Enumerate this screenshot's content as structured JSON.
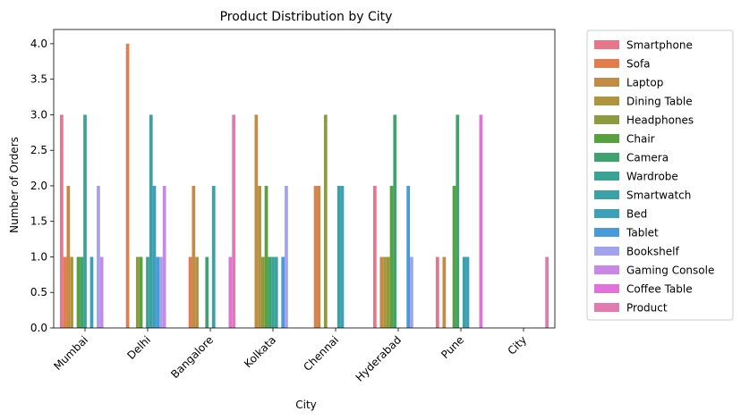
{
  "chart_data": {
    "type": "bar",
    "title": "Product Distribution by City",
    "xlabel": "City",
    "ylabel": "Number of Orders",
    "ylim": [
      0,
      4.2
    ],
    "yticks": [
      "0.0",
      "0.5",
      "1.0",
      "1.5",
      "2.0",
      "2.5",
      "3.0",
      "3.5",
      "4.0"
    ],
    "grid": false,
    "legend_position": "outside-right",
    "categories": [
      "Mumbai",
      "Delhi",
      "Bangalore",
      "Kolkata",
      "Chennai",
      "Hyderabad",
      "Pune",
      "City"
    ],
    "series": [
      {
        "name": "Smartphone",
        "color": "#e8768a",
        "values": [
          3,
          null,
          null,
          null,
          null,
          2,
          1,
          null
        ]
      },
      {
        "name": "Sofa",
        "color": "#e07f4d",
        "values": [
          1,
          4,
          1,
          null,
          2,
          null,
          null,
          null
        ]
      },
      {
        "name": "Laptop",
        "color": "#c28c46",
        "values": [
          2,
          null,
          2,
          3,
          2,
          1,
          1,
          null
        ]
      },
      {
        "name": "Dining Table",
        "color": "#ae9340",
        "values": [
          1,
          null,
          1,
          2,
          null,
          1,
          null,
          null
        ]
      },
      {
        "name": "Headphones",
        "color": "#8e9a3e",
        "values": [
          null,
          1,
          null,
          1,
          3,
          1,
          null,
          null
        ]
      },
      {
        "name": "Chair",
        "color": "#58a13e",
        "values": [
          1,
          1,
          null,
          2,
          null,
          2,
          2,
          null
        ]
      },
      {
        "name": "Camera",
        "color": "#3ea36f",
        "values": [
          1,
          null,
          1,
          1,
          null,
          3,
          3,
          null
        ]
      },
      {
        "name": "Wardrobe",
        "color": "#3aa393",
        "values": [
          3,
          1,
          null,
          1,
          null,
          null,
          null,
          null
        ]
      },
      {
        "name": "Smartwatch",
        "color": "#3ba1a5",
        "values": [
          null,
          3,
          2,
          1,
          2,
          null,
          1,
          null
        ]
      },
      {
        "name": "Bed",
        "color": "#3e9fb8",
        "values": [
          1,
          2,
          null,
          null,
          2,
          null,
          1,
          null
        ]
      },
      {
        "name": "Tablet",
        "color": "#4a99d8",
        "values": [
          null,
          1,
          null,
          1,
          null,
          2,
          null,
          null
        ]
      },
      {
        "name": "Bookshelf",
        "color": "#a2a3ea",
        "values": [
          2,
          1,
          null,
          2,
          null,
          1,
          null,
          null
        ]
      },
      {
        "name": "Gaming Console",
        "color": "#c788e8",
        "values": [
          1,
          2,
          null,
          null,
          null,
          null,
          null,
          null
        ]
      },
      {
        "name": "Coffee Table",
        "color": "#e072d8",
        "values": [
          null,
          null,
          1,
          null,
          null,
          null,
          3,
          null
        ]
      },
      {
        "name": "Product",
        "color": "#e27aaf",
        "values": [
          null,
          null,
          3,
          null,
          null,
          null,
          null,
          1
        ]
      }
    ]
  }
}
